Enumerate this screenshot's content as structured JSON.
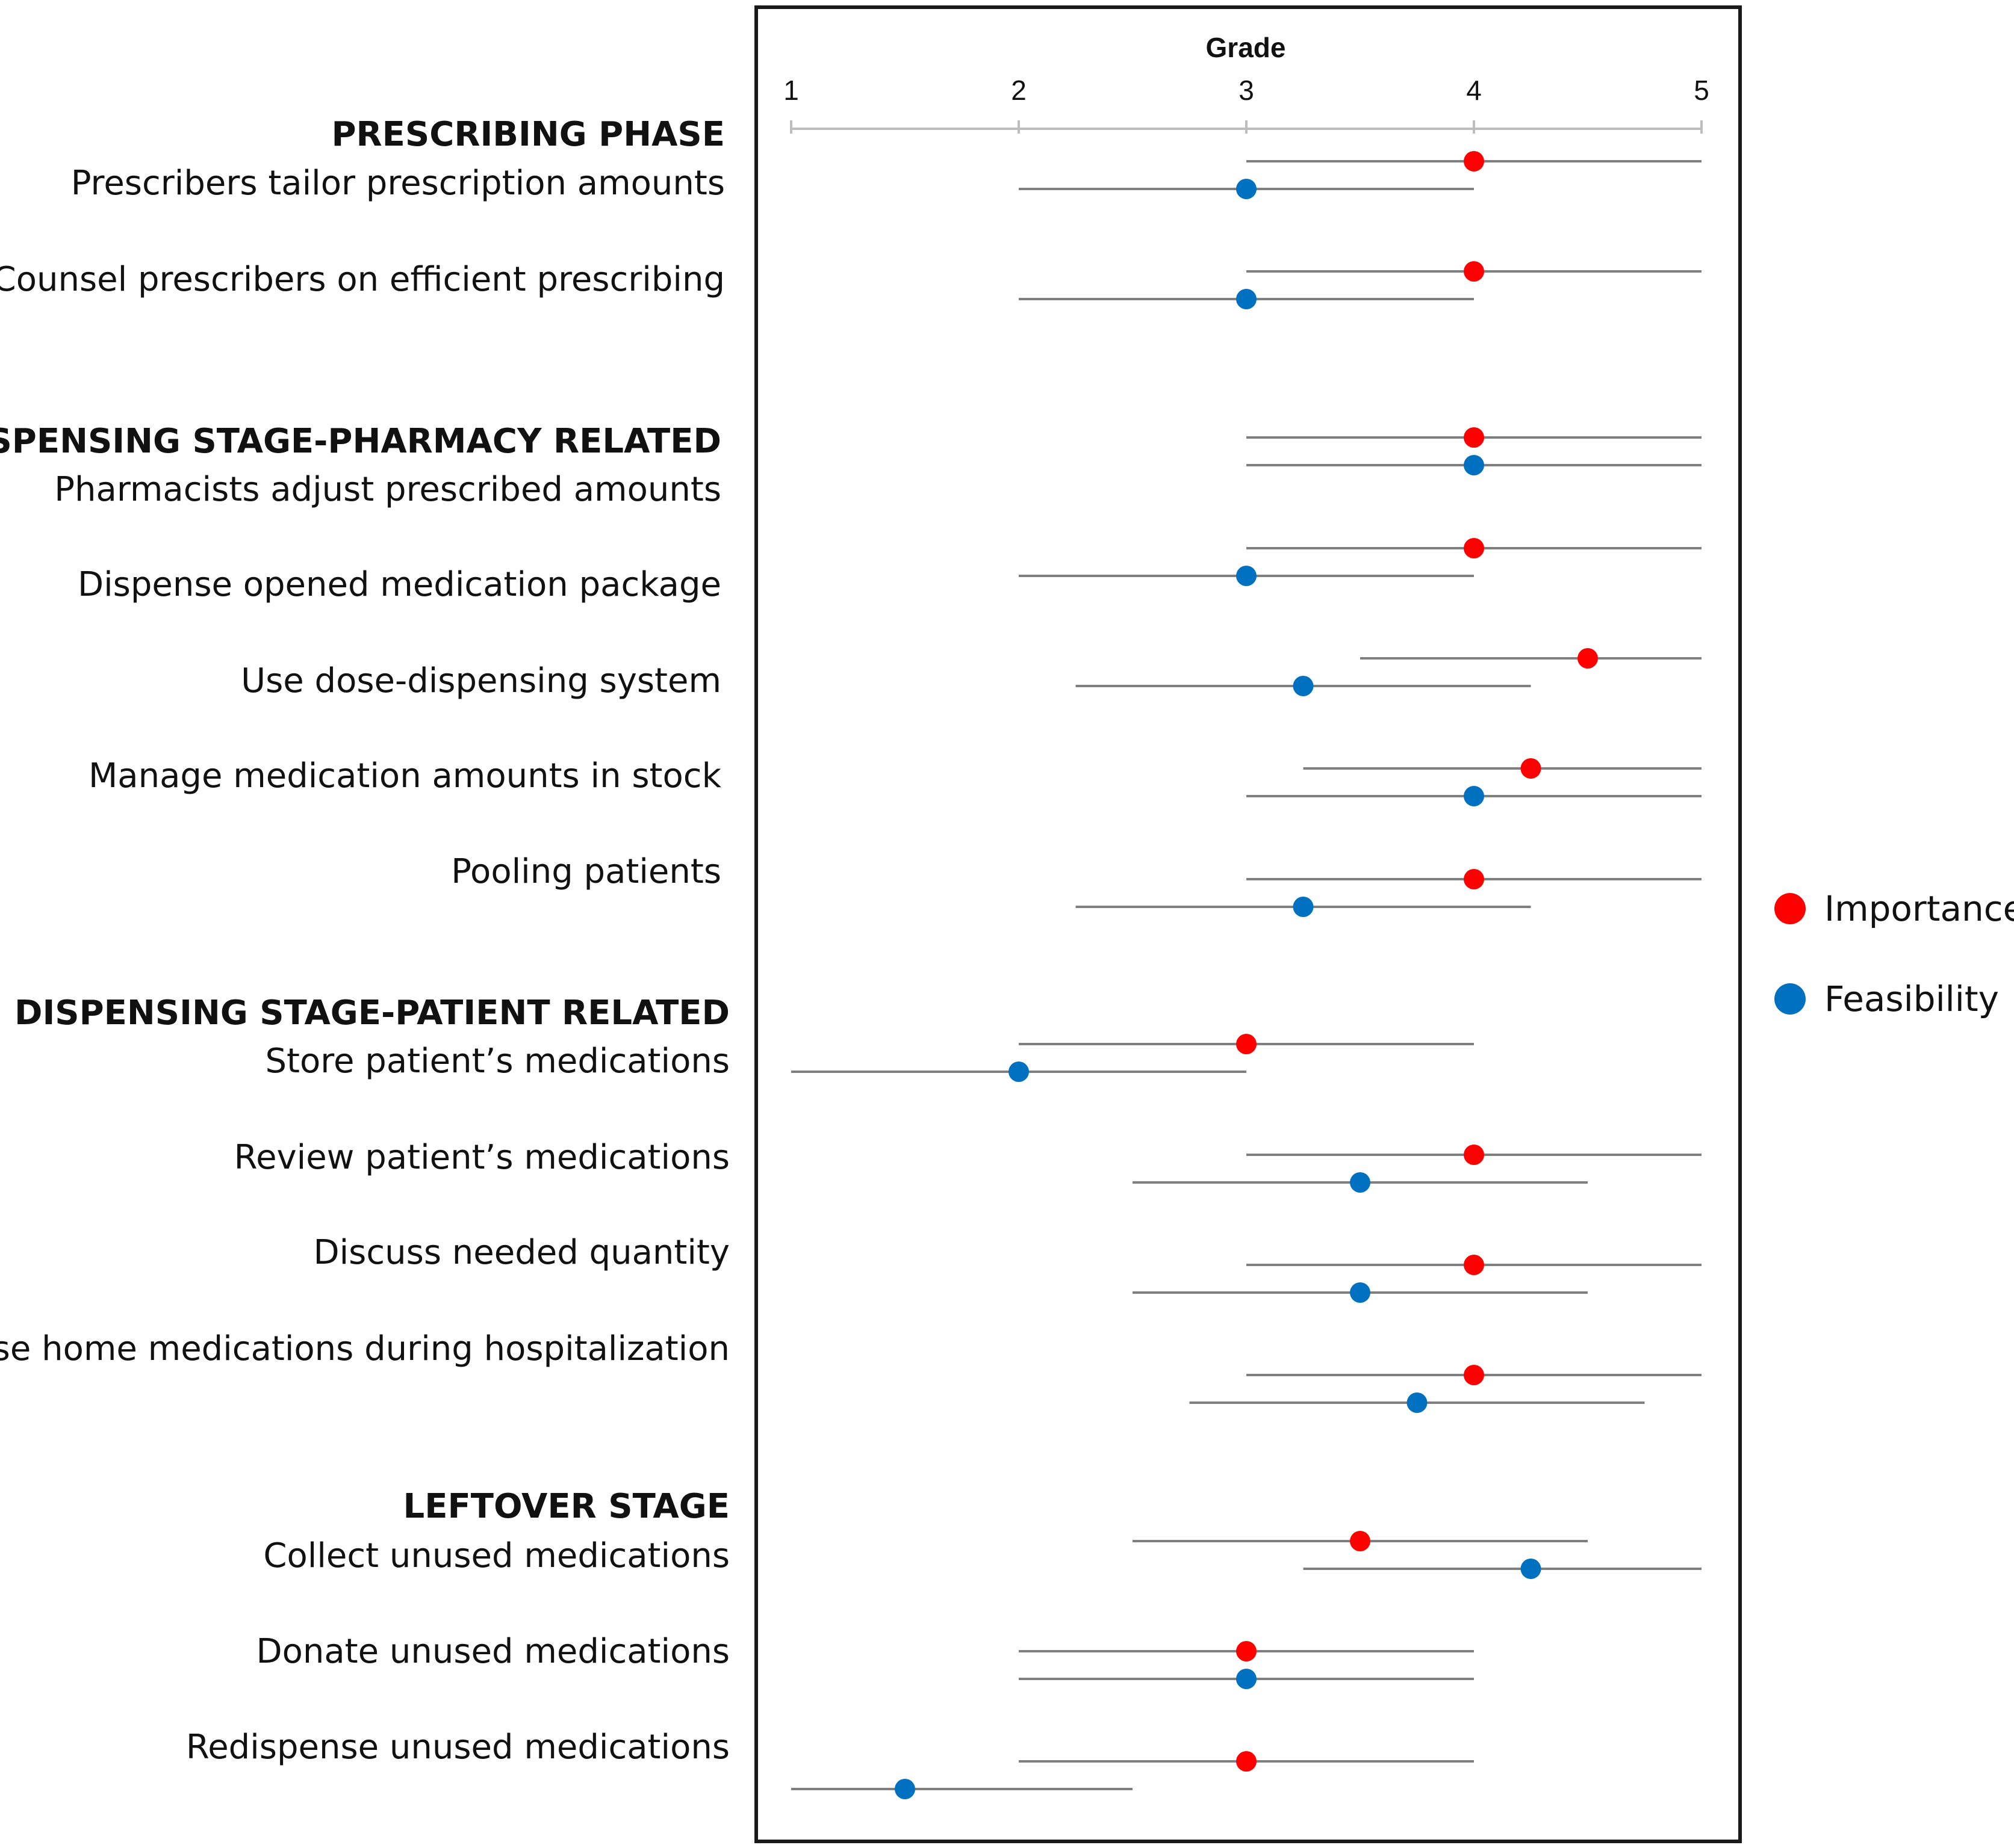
{
  "chart_data": {
    "type": "scatter",
    "title": "",
    "xlabel": "Grade",
    "ylabel": "",
    "xlim": [
      1,
      5
    ],
    "x_ticks": [
      "1",
      "2",
      "3",
      "4",
      "5"
    ],
    "legend_position": "right",
    "series": [
      {
        "name": "Importance",
        "color": "#ff0000"
      },
      {
        "name": "Feasibility",
        "color": "#0070c0"
      }
    ],
    "whisker_color": "#7f7f7f",
    "sections": [
      {
        "heading": "PRESCRIBING PHASE",
        "items": [
          {
            "label": "Prescribers tailor prescription amounts",
            "importance": {
              "value": 4,
              "low": 3,
              "high": 5
            },
            "feasibility": {
              "value": 3,
              "low": 2,
              "high": 4
            }
          },
          {
            "label": "Counsel prescribers on efficient prescribing",
            "importance": {
              "value": 4,
              "low": 3,
              "high": 5
            },
            "feasibility": {
              "value": 3,
              "low": 2,
              "high": 4
            }
          }
        ]
      },
      {
        "heading": "DISPENSING STAGE-PHARMACY RELATED",
        "items": [
          {
            "label": "Pharmacists adjust prescribed amounts",
            "importance": {
              "value": 4,
              "low": 3,
              "high": 5
            },
            "feasibility": {
              "value": 4,
              "low": 3,
              "high": 5
            }
          },
          {
            "label": "Dispense opened medication package",
            "importance": {
              "value": 4,
              "low": 3,
              "high": 5
            },
            "feasibility": {
              "value": 3,
              "low": 2,
              "high": 4
            }
          },
          {
            "label": "Use dose-dispensing system",
            "importance": {
              "value": 4.5,
              "low": 3.5,
              "high": 5
            },
            "feasibility": {
              "value": 3.25,
              "low": 2.25,
              "high": 4.25
            }
          },
          {
            "label": "Manage medication amounts in stock",
            "importance": {
              "value": 4.25,
              "low": 3.25,
              "high": 5
            },
            "feasibility": {
              "value": 4,
              "low": 3,
              "high": 5
            }
          },
          {
            "label": "Pooling patients",
            "importance": {
              "value": 4,
              "low": 3,
              "high": 5
            },
            "feasibility": {
              "value": 3.25,
              "low": 2.25,
              "high": 4.25
            }
          }
        ]
      },
      {
        "heading": "DISPENSING STAGE-PATIENT RELATED",
        "items": [
          {
            "label": "Store patient’s medications",
            "importance": {
              "value": 3,
              "low": 2,
              "high": 4
            },
            "feasibility": {
              "value": 2,
              "low": 1,
              "high": 3
            }
          },
          {
            "label": "Review  patient’s medications",
            "importance": {
              "value": 4,
              "low": 3,
              "high": 5
            },
            "feasibility": {
              "value": 3.5,
              "low": 2.5,
              "high": 4.5
            }
          },
          {
            "label": "Discuss needed quantity",
            "importance": {
              "value": 4,
              "low": 3,
              "high": 5
            },
            "feasibility": {
              "value": 3.5,
              "low": 2.5,
              "high": 4.5
            }
          },
          {
            "label": "Use home medications during hospitalization",
            "importance": {
              "value": 4,
              "low": 3,
              "high": 5
            },
            "feasibility": {
              "value": 3.75,
              "low": 2.75,
              "high": 4.75
            }
          }
        ]
      },
      {
        "heading": "LEFTOVER STAGE",
        "items": [
          {
            "label": "Collect unused medications",
            "importance": {
              "value": 3.5,
              "low": 2.5,
              "high": 4.5
            },
            "feasibility": {
              "value": 4.25,
              "low": 3.25,
              "high": 5
            }
          },
          {
            "label": "Donate unused medications",
            "importance": {
              "value": 3,
              "low": 2,
              "high": 4
            },
            "feasibility": {
              "value": 3,
              "low": 2,
              "high": 4
            }
          },
          {
            "label": "Redispense unused medications",
            "importance": {
              "value": 3,
              "low": 2,
              "high": 4
            },
            "feasibility": {
              "value": 1.5,
              "low": 1,
              "high": 2.5
            }
          }
        ]
      }
    ]
  }
}
